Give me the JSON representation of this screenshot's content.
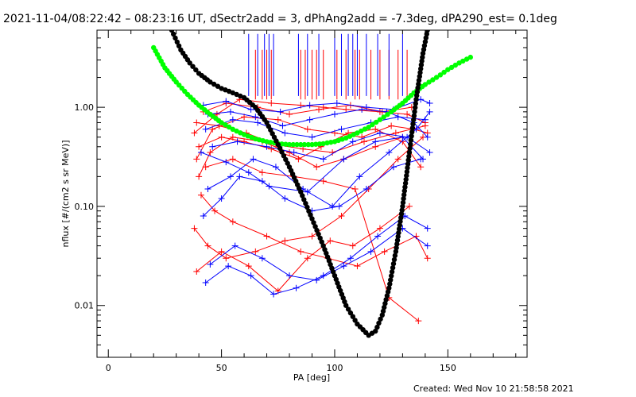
{
  "chart_data": {
    "type": "scatter",
    "title": "2021-11-04/08:22:42 – 08:23:16 UT, dSectr2add = 3, dPhAng2add = -7.3deg, dPA290_est=  0.1deg",
    "xlabel": "PA [deg]",
    "ylabel": "nflux [#/(cm2 s sr MeV)]",
    "footer": "Created: Wed Nov 10 21:58:58 2021",
    "xlim": [
      -5,
      185
    ],
    "ylim": [
      0.003,
      6
    ],
    "yscale": "log",
    "grid": false,
    "x_ticks": [
      0,
      50,
      100,
      150
    ],
    "x_tick_labels": [
      "0",
      "50",
      "100",
      "150"
    ],
    "y_ticks": [
      0.01,
      0.1,
      1.0
    ],
    "y_tick_labels": [
      "0.01",
      "0.10",
      "1.00"
    ],
    "colors": {
      "red": "#ff0000",
      "blue": "#0000ff",
      "green": "#00ff00",
      "black": "#000000"
    },
    "series": [
      {
        "color": "red",
        "style": "line-plus",
        "lines": [
          {
            "x": [
              38,
              48,
              58,
              72,
              85,
              95,
              105,
              120,
              132,
              140
            ],
            "y": [
              0.55,
              0.85,
              1.2,
              1.1,
              1.05,
              1.0,
              0.95,
              0.9,
              0.85,
              0.7
            ]
          },
          {
            "x": [
              39,
              46,
              60,
              75,
              88,
              100,
              112,
              125,
              135,
              141
            ],
            "y": [
              0.3,
              0.6,
              0.8,
              0.75,
              0.6,
              0.55,
              0.5,
              0.65,
              0.6,
              0.55
            ]
          },
          {
            "x": [
              40,
              45,
              55,
              68,
              80,
              92,
              104,
              118,
              130
            ],
            "y": [
              0.2,
              0.35,
              0.5,
              0.45,
              0.35,
              0.25,
              0.3,
              0.4,
              0.5
            ]
          },
          {
            "x": [
              38,
              44,
              52,
              65,
              78,
              90,
              103,
              115,
              128,
              139
            ],
            "y": [
              0.06,
              0.04,
              0.03,
              0.035,
              0.045,
              0.05,
              0.08,
              0.15,
              0.3,
              0.5
            ]
          },
          {
            "x": [
              39,
              50,
              62,
              75,
              88,
              98,
              108,
              120,
              133
            ],
            "y": [
              0.022,
              0.035,
              0.025,
              0.014,
              0.03,
              0.045,
              0.04,
              0.06,
              0.1
            ]
          },
          {
            "x": [
              41,
              47,
              55,
              70,
              85,
              97,
              110,
              122,
              136,
              141
            ],
            "y": [
              0.13,
              0.09,
              0.07,
              0.05,
              0.035,
              0.03,
              0.025,
              0.035,
              0.05,
              0.03
            ]
          },
          {
            "x": [
              40,
              50,
              60,
              72,
              84,
              94,
              106,
              118,
              130,
              138
            ],
            "y": [
              0.4,
              0.5,
              0.45,
              0.38,
              0.3,
              0.4,
              0.55,
              0.6,
              0.45,
              0.25
            ]
          },
          {
            "x": [
              42,
              52,
              66,
              80,
              93,
              107,
              121,
              134
            ],
            "y": [
              0.9,
              1.1,
              1.0,
              0.85,
              0.95,
              1.05,
              0.9,
              1.0
            ]
          },
          {
            "x": [
              43,
              55,
              68,
              82,
              95,
              109,
              124,
              137
            ],
            "y": [
              0.25,
              0.3,
              0.22,
              0.2,
              0.18,
              0.15,
              0.012,
              0.007
            ]
          },
          {
            "x": [
              39,
              49,
              61,
              74,
              86,
              99,
              113,
              127,
              140
            ],
            "y": [
              0.7,
              0.65,
              0.55,
              0.42,
              0.38,
              0.35,
              0.45,
              0.55,
              0.65
            ]
          }
        ]
      },
      {
        "color": "blue",
        "style": "line-plus",
        "lines": [
          {
            "x": [
              42,
              52,
              63,
              76,
              89,
              101,
              114,
              126,
              138,
              142
            ],
            "y": [
              1.05,
              1.15,
              0.95,
              0.9,
              1.05,
              1.1,
              1.0,
              0.95,
              1.2,
              1.1
            ]
          },
          {
            "x": [
              43,
              55,
              66,
              78,
              90,
              103,
              116,
              128,
              140
            ],
            "y": [
              0.6,
              0.75,
              0.7,
              0.55,
              0.5,
              0.6,
              0.7,
              0.8,
              0.75
            ]
          },
          {
            "x": [
              44,
              54,
              64,
              74,
              86,
              99,
              111,
              124,
              136,
              142
            ],
            "y": [
              0.15,
              0.2,
              0.3,
              0.25,
              0.15,
              0.1,
              0.2,
              0.35,
              0.6,
              0.9
            ]
          },
          {
            "x": [
              45,
              56,
              68,
              80,
              92,
              104,
              116,
              130,
              141
            ],
            "y": [
              0.026,
              0.04,
              0.03,
              0.02,
              0.018,
              0.025,
              0.035,
              0.06,
              0.04
            ]
          },
          {
            "x": [
              43,
              53,
              63,
              73,
              83,
              95,
              107,
              119,
              131,
              141
            ],
            "y": [
              0.017,
              0.025,
              0.02,
              0.013,
              0.015,
              0.02,
              0.03,
              0.05,
              0.08,
              0.06
            ]
          },
          {
            "x": [
              46,
              57,
              70,
              82,
              95,
              108,
              120,
              132,
              142
            ],
            "y": [
              0.4,
              0.45,
              0.4,
              0.35,
              0.3,
              0.45,
              0.55,
              0.5,
              0.35
            ]
          },
          {
            "x": [
              42,
              50,
              58,
              68,
              78,
              90,
              102,
              114,
              126,
              138
            ],
            "y": [
              0.08,
              0.12,
              0.2,
              0.18,
              0.12,
              0.09,
              0.1,
              0.15,
              0.25,
              0.3
            ]
          },
          {
            "x": [
              44,
              54,
              65,
              77,
              89,
              100,
              112,
              123,
              135,
              141
            ],
            "y": [
              0.85,
              0.9,
              0.8,
              0.65,
              0.75,
              0.85,
              0.95,
              0.9,
              0.7,
              0.5
            ]
          },
          {
            "x": [
              41,
              52,
              62,
              71,
              88,
              104,
              118,
              130,
              139
            ],
            "y": [
              0.35,
              0.28,
              0.22,
              0.16,
              0.14,
              0.3,
              0.45,
              0.5,
              0.3
            ]
          }
        ]
      },
      {
        "color": "red",
        "style": "vertical-markers",
        "x": [
          65,
          68,
          70,
          72,
          85,
          87,
          90,
          92,
          95,
          101,
          105,
          109,
          111,
          116,
          120,
          124,
          128,
          132
        ],
        "y_top": 3.8,
        "y_bottom": 1.2
      },
      {
        "color": "blue",
        "style": "vertical-markers",
        "x": [
          62,
          66,
          69,
          71,
          73,
          84,
          88,
          93,
          100,
          103,
          106,
          108,
          110,
          114,
          119,
          124,
          130
        ],
        "y_top": 5.5,
        "y_bottom": 1.3
      },
      {
        "color": "green",
        "style": "thick-dots",
        "x": [
          20,
          25,
          30,
          35,
          40,
          45,
          50,
          55,
          60,
          65,
          70,
          75,
          80,
          85,
          90,
          95,
          100,
          105,
          110,
          115,
          120,
          125,
          130,
          135,
          140,
          145,
          150,
          155,
          160
        ],
        "y": [
          4.0,
          2.5,
          1.8,
          1.35,
          1.05,
          0.85,
          0.7,
          0.6,
          0.53,
          0.48,
          0.45,
          0.43,
          0.42,
          0.42,
          0.42,
          0.43,
          0.45,
          0.49,
          0.55,
          0.63,
          0.75,
          0.9,
          1.1,
          1.4,
          1.7,
          2.0,
          2.4,
          2.8,
          3.2
        ]
      },
      {
        "color": "black",
        "style": "thick-dots",
        "x": [
          28,
          32,
          36,
          40,
          45,
          50,
          55,
          60,
          65,
          70,
          75,
          80,
          85,
          90,
          95,
          100,
          105,
          110,
          115,
          118,
          121,
          124,
          127,
          130,
          133,
          136,
          139,
          141
        ],
        "y": [
          6.0,
          3.8,
          2.8,
          2.2,
          1.8,
          1.55,
          1.4,
          1.25,
          1.0,
          0.7,
          0.42,
          0.25,
          0.14,
          0.075,
          0.04,
          0.02,
          0.01,
          0.0065,
          0.005,
          0.0055,
          0.008,
          0.015,
          0.035,
          0.1,
          0.35,
          1.2,
          3.5,
          6.0
        ]
      }
    ]
  }
}
